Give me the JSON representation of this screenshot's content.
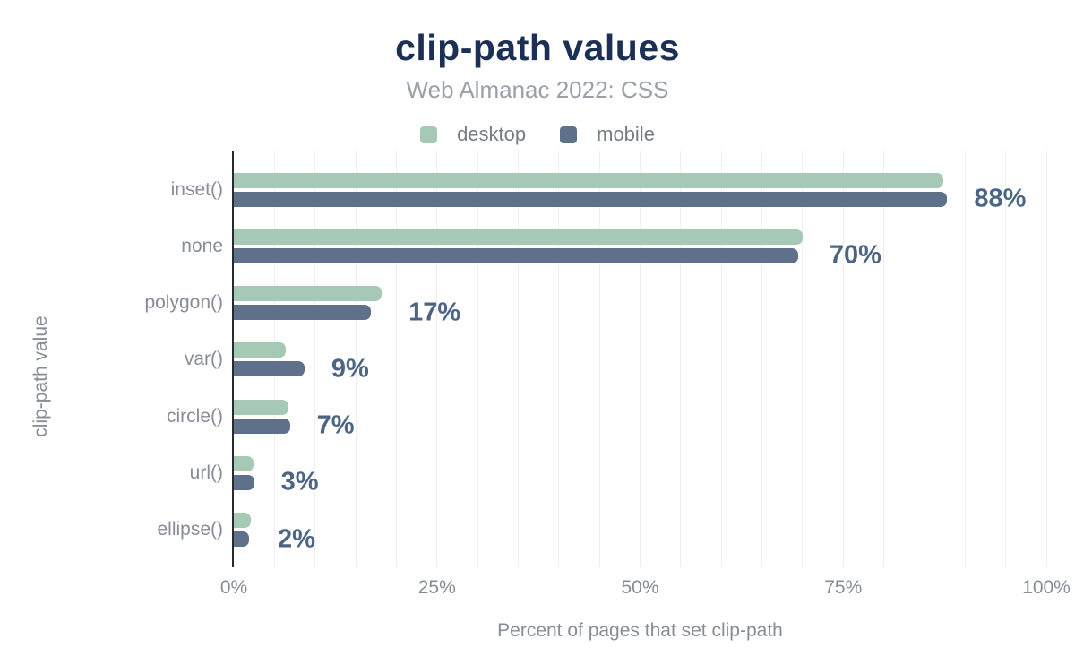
{
  "title": "clip-path values",
  "subtitle": "Web Almanac 2022: CSS",
  "chart_data": {
    "type": "bar",
    "orientation": "horizontal",
    "title": "clip-path values",
    "subtitle": "Web Almanac 2022: CSS",
    "categories": [
      "inset()",
      "none",
      "polygon()",
      "var()",
      "circle()",
      "url()",
      "ellipse()"
    ],
    "series": [
      {
        "name": "desktop",
        "color": "#a6c9b6",
        "values": [
          87.3,
          70.0,
          18.2,
          6.4,
          6.7,
          2.4,
          2.1
        ]
      },
      {
        "name": "mobile",
        "color": "#5f708b",
        "values": [
          87.8,
          69.5,
          16.9,
          8.7,
          6.9,
          2.5,
          1.9
        ]
      }
    ],
    "value_labels": [
      "88%",
      "70%",
      "17%",
      "9%",
      "7%",
      "3%",
      "2%"
    ],
    "value_label_color": "#4d6584",
    "xlabel": "Percent of pages that set clip-path",
    "ylabel": "clip-path value",
    "x_ticks": [
      "0%",
      "25%",
      "50%",
      "75%",
      "100%"
    ],
    "x_tick_positions": [
      0,
      25,
      50,
      75,
      100
    ],
    "xlim": [
      0,
      100
    ],
    "gridline_step_pct": 5,
    "grid": "vertical-only",
    "legend_position": "top"
  },
  "colors": {
    "title": "#1c2f55",
    "subtitle": "#9aa0a8",
    "axis_text": "#878d96",
    "legend_text": "#767c85",
    "axis_line": "#272a31",
    "gridline": "#efeff2"
  }
}
